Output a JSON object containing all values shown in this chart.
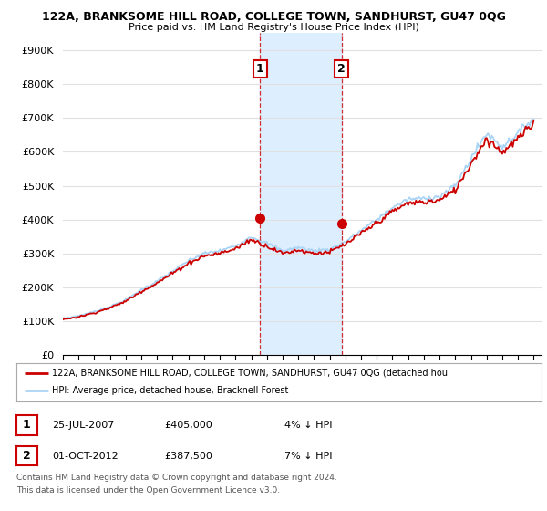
{
  "title_line1": "122A, BRANKSOME HILL ROAD, COLLEGE TOWN, SANDHURST, GU47 0QG",
  "title_line2": "Price paid vs. HM Land Registry's House Price Index (HPI)",
  "ylabel_ticks": [
    "£0",
    "£100K",
    "£200K",
    "£300K",
    "£400K",
    "£500K",
    "£600K",
    "£700K",
    "£800K",
    "£900K"
  ],
  "ytick_values": [
    0,
    100000,
    200000,
    300000,
    400000,
    500000,
    600000,
    700000,
    800000,
    900000
  ],
  "ylim": [
    0,
    950000
  ],
  "xlim_start": 1995.0,
  "xlim_end": 2025.5,
  "xtick_years": [
    1995,
    1996,
    1997,
    1998,
    1999,
    2000,
    2001,
    2002,
    2003,
    2004,
    2005,
    2006,
    2007,
    2008,
    2009,
    2010,
    2011,
    2012,
    2013,
    2014,
    2015,
    2016,
    2017,
    2018,
    2019,
    2020,
    2021,
    2022,
    2023,
    2024,
    2025
  ],
  "hpi_color": "#aad4f5",
  "price_color": "#cc0000",
  "sale1_x": 2007.56,
  "sale1_y": 405000,
  "sale2_x": 2012.75,
  "sale2_y": 387500,
  "shade_color": "#ddeeff",
  "legend_label1": "122A, BRANKSOME HILL ROAD, COLLEGE TOWN, SANDHURST, GU47 0QG (detached hou",
  "legend_label2": "HPI: Average price, detached house, Bracknell Forest",
  "table_row1_num": "1",
  "table_row1_date": "25-JUL-2007",
  "table_row1_price": "£405,000",
  "table_row1_hpi": "4% ↓ HPI",
  "table_row2_num": "2",
  "table_row2_date": "01-OCT-2012",
  "table_row2_price": "£387,500",
  "table_row2_hpi": "7% ↓ HPI",
  "footnote_line1": "Contains HM Land Registry data © Crown copyright and database right 2024.",
  "footnote_line2": "This data is licensed under the Open Government Licence v3.0.",
  "background_color": "#ffffff",
  "grid_color": "#e0e0e0"
}
